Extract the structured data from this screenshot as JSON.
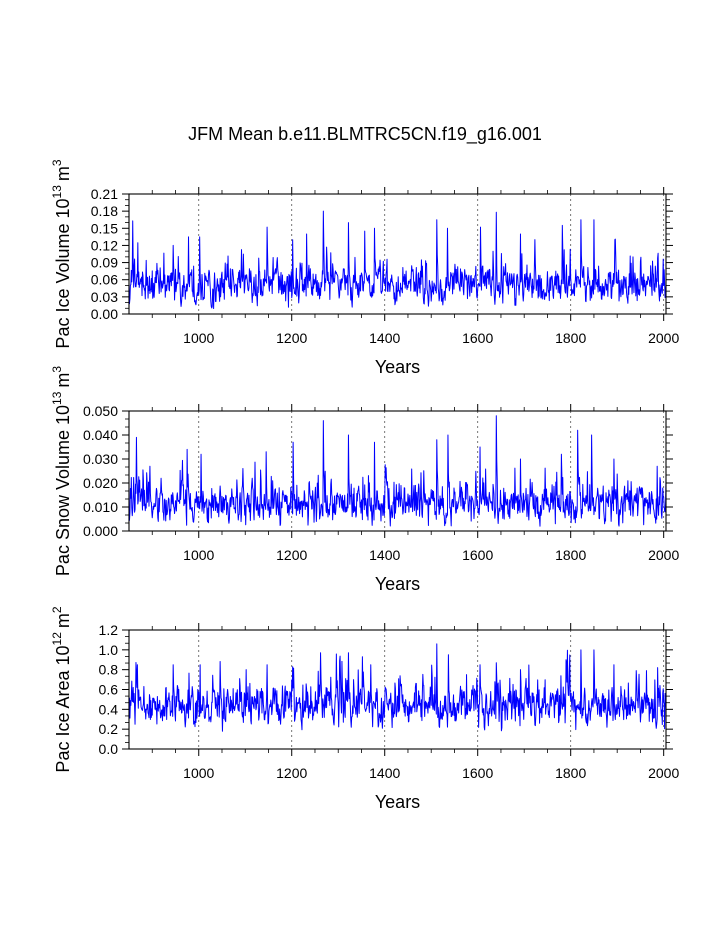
{
  "title": "JFM Mean b.e11.BLMTRC5CN.f19_g16.001",
  "chart_data": [
    {
      "type": "line",
      "name": "pac-ice-volume",
      "ylabel_base": "Pac Ice Volume 10",
      "ylabel_exp": "13",
      "ylabel_unit": "m",
      "ylabel_unit_exp": "3",
      "xlabel": "Years",
      "xlim": [
        850,
        2005
      ],
      "ylim": [
        0.0,
        0.21
      ],
      "xticks": [
        1000,
        1200,
        1400,
        1600,
        1800,
        2000
      ],
      "yticks": [
        0.0,
        0.03,
        0.06,
        0.09,
        0.12,
        0.15,
        0.18,
        0.21
      ],
      "ytick_labels": [
        "0.00",
        "0.03",
        "0.06",
        "0.09",
        "0.12",
        "0.15",
        "0.18",
        "0.21"
      ],
      "gridlines_x": [
        1000,
        1200,
        1400,
        1600,
        1800,
        2000
      ],
      "series_color": "#0000ff",
      "baseline": 0.05,
      "noise": 0.022,
      "floor": 0.008,
      "peaks": [
        [
          858,
          0.163
        ],
        [
          945,
          0.12
        ],
        [
          978,
          0.135
        ],
        [
          1002,
          0.135
        ],
        [
          1147,
          0.152
        ],
        [
          1202,
          0.13
        ],
        [
          1232,
          0.14
        ],
        [
          1268,
          0.18
        ],
        [
          1322,
          0.16
        ],
        [
          1357,
          0.145
        ],
        [
          1378,
          0.15
        ],
        [
          1512,
          0.165
        ],
        [
          1535,
          0.15
        ],
        [
          1606,
          0.152
        ],
        [
          1640,
          0.178
        ],
        [
          1692,
          0.14
        ],
        [
          1782,
          0.155
        ],
        [
          1822,
          0.165
        ],
        [
          1850,
          0.165
        ],
        [
          1895,
          0.13
        ],
        [
          1987,
          0.098
        ]
      ]
    },
    {
      "type": "line",
      "name": "pac-snow-volume",
      "ylabel_base": "Pac Snow Volume 10",
      "ylabel_exp": "13",
      "ylabel_unit": "m",
      "ylabel_unit_exp": "3",
      "xlabel": "Years",
      "xlim": [
        850,
        2005
      ],
      "ylim": [
        0.0,
        0.05
      ],
      "xticks": [
        1000,
        1200,
        1400,
        1600,
        1800,
        2000
      ],
      "yticks": [
        0.0,
        0.01,
        0.02,
        0.03,
        0.04,
        0.05
      ],
      "ytick_labels": [
        "0.000",
        "0.010",
        "0.020",
        "0.030",
        "0.040",
        "0.050"
      ],
      "gridlines_x": [
        1000,
        1200,
        1400,
        1600,
        1800,
        2000
      ],
      "series_color": "#0000ff",
      "baseline": 0.011,
      "noise": 0.0055,
      "floor": 0.002,
      "peaks": [
        [
          866,
          0.039
        ],
        [
          975,
          0.034
        ],
        [
          1005,
          0.032
        ],
        [
          1145,
          0.033
        ],
        [
          1203,
          0.037
        ],
        [
          1268,
          0.046
        ],
        [
          1322,
          0.04
        ],
        [
          1378,
          0.037
        ],
        [
          1512,
          0.038
        ],
        [
          1536,
          0.04
        ],
        [
          1605,
          0.035
        ],
        [
          1640,
          0.048
        ],
        [
          1692,
          0.03
        ],
        [
          1780,
          0.032
        ],
        [
          1815,
          0.042
        ],
        [
          1845,
          0.04
        ],
        [
          1893,
          0.03
        ],
        [
          1986,
          0.027
        ]
      ]
    },
    {
      "type": "line",
      "name": "pac-ice-area",
      "ylabel_base": "Pac Ice Area 10",
      "ylabel_exp": "12",
      "ylabel_unit": "m",
      "ylabel_unit_exp": "2",
      "xlabel": "Years",
      "xlim": [
        850,
        2005
      ],
      "ylim": [
        0.0,
        1.2
      ],
      "xticks": [
        1000,
        1200,
        1400,
        1600,
        1800,
        2000
      ],
      "yticks": [
        0.0,
        0.2,
        0.4,
        0.6,
        0.8,
        1.0,
        1.2
      ],
      "ytick_labels": [
        "0.0",
        "0.2",
        "0.4",
        "0.6",
        "0.8",
        "1.0",
        "1.2"
      ],
      "gridlines_x": [
        1000,
        1200,
        1400,
        1600,
        1800,
        2000
      ],
      "series_color": "#0000ff",
      "baseline": 0.42,
      "noise": 0.14,
      "floor": 0.06,
      "peaks": [
        [
          868,
          0.85
        ],
        [
          945,
          0.85
        ],
        [
          1003,
          0.85
        ],
        [
          1102,
          0.8
        ],
        [
          1147,
          0.85
        ],
        [
          1202,
          0.83
        ],
        [
          1262,
          0.97
        ],
        [
          1322,
          0.97
        ],
        [
          1352,
          0.93
        ],
        [
          1370,
          0.85
        ],
        [
          1512,
          1.06
        ],
        [
          1537,
          0.95
        ],
        [
          1605,
          0.85
        ],
        [
          1640,
          0.87
        ],
        [
          1692,
          0.8
        ],
        [
          1790,
          0.9
        ],
        [
          1822,
          1.0
        ],
        [
          1850,
          1.0
        ],
        [
          1893,
          0.85
        ],
        [
          1987,
          0.82
        ]
      ]
    }
  ]
}
